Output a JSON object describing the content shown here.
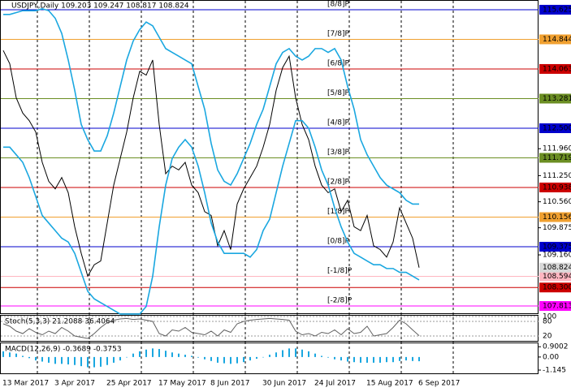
{
  "chart_data": [
    {
      "type": "line",
      "title": "USDJPY,Daily  109.203 109.247 108.817 108.824",
      "categories": [
        "13 Mar 2017",
        null,
        null,
        null,
        null,
        null,
        null,
        null,
        "3 Apr 2017",
        null,
        null,
        null,
        null,
        null,
        null,
        null,
        "25 Apr 2017",
        null,
        null,
        null,
        null,
        null,
        null,
        null,
        "17 May 2017",
        null,
        null,
        null,
        null,
        null,
        null,
        null,
        "8 Jun 2017",
        null,
        null,
        null,
        null,
        null,
        null,
        null,
        "30 Jun 2017",
        null,
        null,
        null,
        null,
        null,
        null,
        null,
        "24 Jul 2017",
        null,
        null,
        null,
        null,
        null,
        null,
        null,
        "15 Aug 2017",
        null,
        null,
        null,
        null,
        null,
        null,
        null,
        "6 Sep 2017"
      ],
      "series": [
        {
          "color": "#000000",
          "values": [
            114.55,
            114.2,
            113.3,
            112.9,
            112.7,
            112.4,
            111.6,
            111.1,
            110.9,
            111.2,
            110.8,
            109.9,
            109.2,
            108.6,
            108.9,
            109.0,
            110.0,
            111.0,
            111.7,
            112.4,
            113.3,
            114.0,
            113.9,
            114.3,
            112.6,
            111.3,
            111.5,
            111.4,
            111.6,
            111.0,
            110.8,
            110.3,
            110.2,
            109.4,
            109.8,
            109.3,
            110.5,
            110.9,
            111.2,
            111.5,
            112.0,
            112.6,
            113.5,
            114.1,
            114.4,
            113.3,
            112.6,
            112.2,
            111.5,
            111.0,
            110.8,
            110.9,
            110.3,
            110.6,
            109.9,
            109.8,
            110.2,
            109.4,
            109.3,
            109.1,
            109.5,
            110.4,
            110.0,
            109.6,
            108.824
          ]
        },
        {
          "color": "#1aa7e0",
          "values": [
            115.5,
            115.5,
            115.55,
            115.6,
            115.6,
            115.6,
            115.65,
            115.6,
            115.4,
            115.0,
            114.3,
            113.5,
            112.6,
            112.2,
            111.9,
            111.9,
            112.3,
            112.9,
            113.6,
            114.3,
            114.8,
            115.1,
            115.3,
            115.2,
            114.9,
            114.6,
            114.5,
            114.4,
            114.3,
            114.2,
            113.6,
            113.0,
            112.1,
            111.4,
            111.1,
            111.0,
            111.3,
            111.7,
            112.1,
            112.6,
            113.0,
            113.6,
            114.2,
            114.5,
            114.6,
            114.4,
            114.3,
            114.4,
            114.6,
            114.6,
            114.5,
            114.6,
            114.3,
            113.6,
            113.0,
            112.2,
            111.8,
            111.5,
            111.2,
            111.0,
            110.9,
            110.8,
            110.6,
            110.5,
            110.5
          ]
        },
        {
          "color": "#1aa7e0",
          "values": [
            112.0,
            112.0,
            111.8,
            111.6,
            111.2,
            110.7,
            110.2,
            110.0,
            109.8,
            109.6,
            109.5,
            109.2,
            108.7,
            108.2,
            108.0,
            107.9,
            107.8,
            107.7,
            107.6,
            107.6,
            107.6,
            107.6,
            107.8,
            108.6,
            109.9,
            111.0,
            111.7,
            112.0,
            112.2,
            112.0,
            111.5,
            110.8,
            110.0,
            109.5,
            109.2,
            109.2,
            109.2,
            109.2,
            109.1,
            109.3,
            109.8,
            110.1,
            110.8,
            111.5,
            112.1,
            112.7,
            112.7,
            112.5,
            112.0,
            111.4,
            111.0,
            110.4,
            109.9,
            109.5,
            109.2,
            109.1,
            109.0,
            108.9,
            108.9,
            108.8,
            108.8,
            108.7,
            108.7,
            108.6,
            108.5
          ]
        }
      ],
      "levels": [
        {
          "name": "[8/8]P",
          "value": 115.625,
          "color": "#0000cd"
        },
        {
          "name": "[7/8]P",
          "value": 114.844,
          "color": "#f0a030"
        },
        {
          "name": "[6/8]P",
          "value": 114.063,
          "color": "#cc0000"
        },
        {
          "name": "[5/8]P",
          "value": 113.281,
          "color": "#6b8e23"
        },
        {
          "name": "[4/8]P",
          "value": 112.5,
          "label": "112.500",
          "color": "#0000cd"
        },
        {
          "name": "[3/8]P",
          "value": 111.719,
          "color": "#6b8e23"
        },
        {
          "name": "[2/8]P",
          "value": 110.938,
          "color": "#cc0000"
        },
        {
          "name": "[1/8]P",
          "value": 110.156,
          "color": "#f0a030"
        },
        {
          "name": "[0/8]P",
          "value": 109.375,
          "color": "#0000cd"
        },
        {
          "name": "[-1/8]P",
          "value": 108.594,
          "color": "#ffb6c1"
        },
        {
          "name": "[-2/8]P",
          "value": 107.813,
          "color": "#ff00ff"
        }
      ],
      "price_line": {
        "value": 108.3,
        "label": "108.300",
        "color": "#cc0000"
      },
      "last_price": 108.824,
      "ylim": [
        107.62,
        115.86
      ],
      "yticks": [
        {
          "value": 111.96,
          "label": "111.960"
        },
        {
          "value": 111.25,
          "label": "111.250"
        },
        {
          "value": 110.56,
          "label": "110.560"
        },
        109.875,
        {
          "value": 109.16,
          "label": "109.160"
        }
      ]
    },
    {
      "type": "line",
      "title": "Stoch(5,3,3) 21.2088 36.4064",
      "color": "#606060",
      "values": [
        70,
        60,
        40,
        30,
        50,
        35,
        25,
        40,
        30,
        55,
        40,
        20,
        15,
        10,
        30,
        55,
        75,
        85,
        90,
        92,
        88,
        90,
        85,
        80,
        30,
        20,
        45,
        40,
        55,
        35,
        30,
        25,
        40,
        20,
        45,
        35,
        70,
        80,
        85,
        88,
        90,
        92,
        90,
        88,
        85,
        40,
        25,
        30,
        20,
        35,
        30,
        45,
        25,
        50,
        30,
        35,
        60,
        20,
        25,
        30,
        55,
        85,
        70,
        45,
        21.2088
      ],
      "ylim": [
        0,
        100
      ],
      "yticks": [
        20,
        80,
        100
      ]
    },
    {
      "type": "bar",
      "title": "MACD(12,26,9) -0.3689 -0.3753",
      "color": "#1aa7e0",
      "values": [
        0.5,
        0.4,
        0.3,
        0.1,
        -0.1,
        -0.3,
        -0.4,
        -0.5,
        -0.6,
        -0.6,
        -0.65,
        -0.7,
        -0.8,
        -0.9,
        -0.9,
        -0.85,
        -0.7,
        -0.5,
        -0.3,
        0.0,
        0.3,
        0.5,
        0.65,
        0.75,
        0.7,
        0.55,
        0.4,
        0.3,
        0.2,
        0.1,
        -0.05,
        -0.2,
        -0.35,
        -0.5,
        -0.55,
        -0.6,
        -0.55,
        -0.45,
        -0.3,
        -0.15,
        0.0,
        0.2,
        0.4,
        0.6,
        0.75,
        0.75,
        0.65,
        0.5,
        0.3,
        0.1,
        -0.05,
        -0.2,
        -0.3,
        -0.4,
        -0.45,
        -0.5,
        -0.5,
        -0.5,
        -0.5,
        -0.45,
        -0.45,
        -0.35,
        -0.3,
        -0.35,
        -0.3689
      ],
      "ylim": [
        -1.5,
        1.2
      ],
      "yticks": [
        0.9002,
        {
          "value": 0,
          "label": "0.00"
        },
        -1.145
      ]
    }
  ]
}
